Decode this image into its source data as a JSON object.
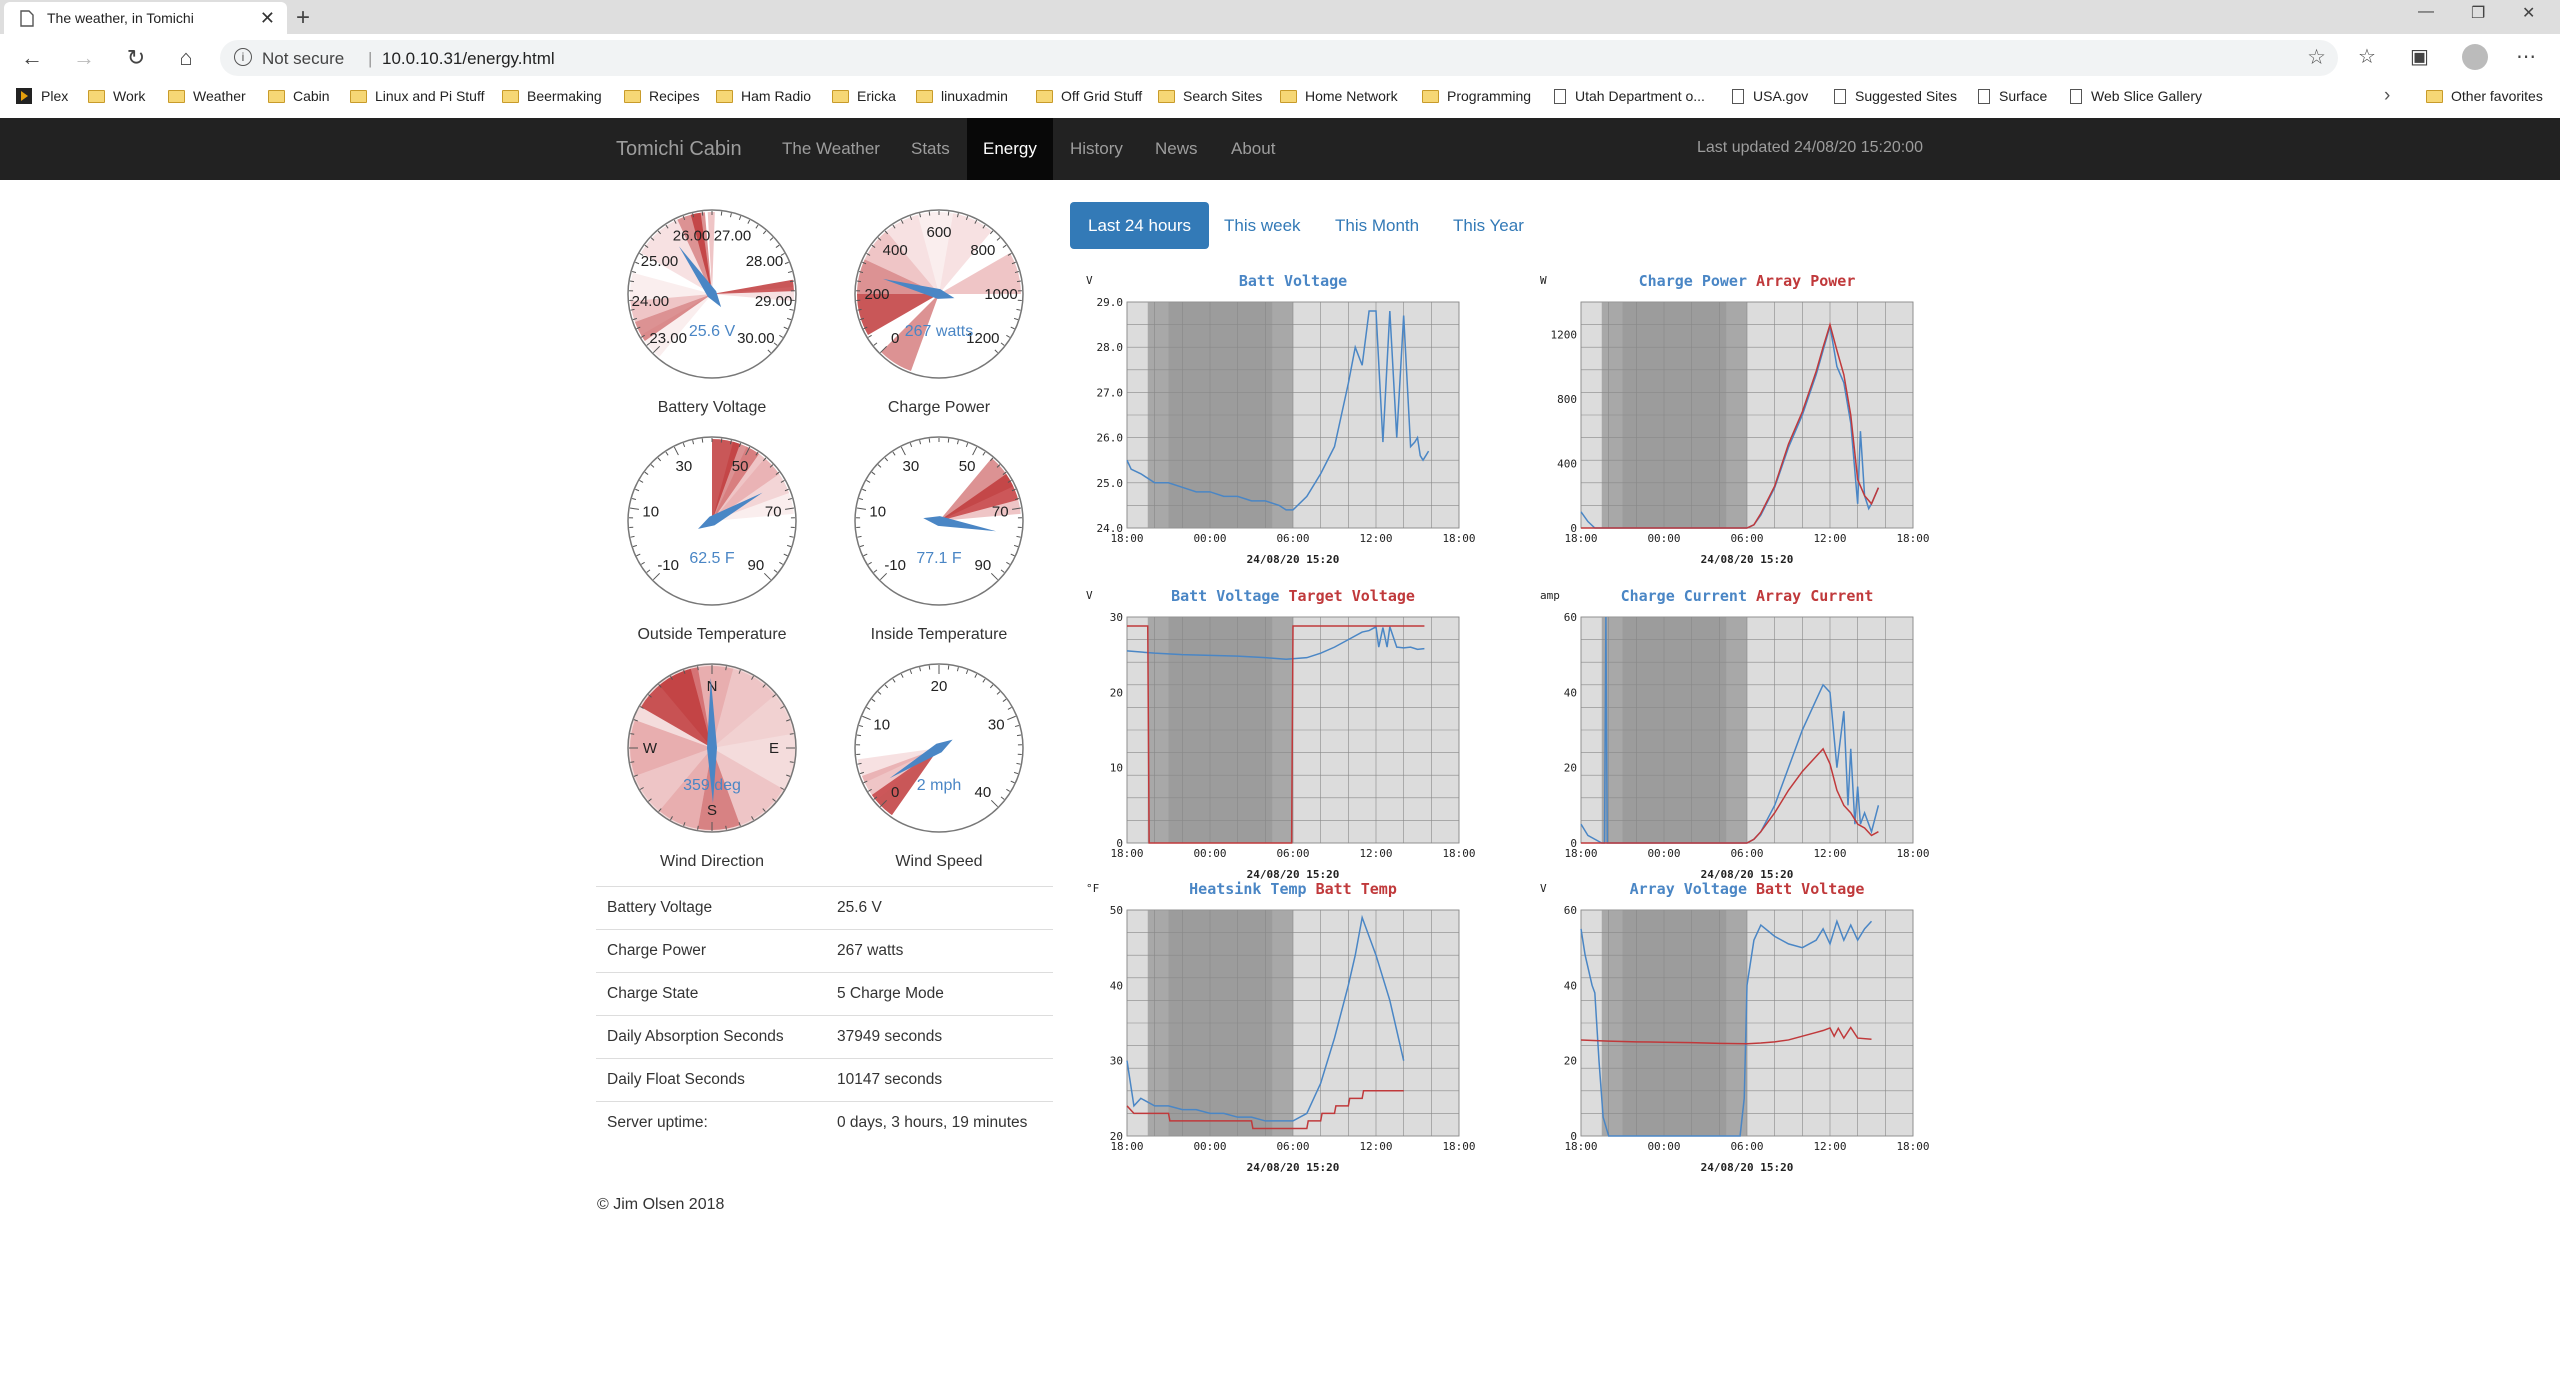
{
  "browser": {
    "tab_title": "The weather, in Tomichi",
    "new_tab": "+",
    "close_tab": "✕",
    "security": "Not secure",
    "url": "10.0.10.31/energy.html",
    "bookmarks": [
      "Plex",
      "Work",
      "Weather",
      "Cabin",
      "Linux and Pi Stuff",
      "Beermaking",
      "Recipes",
      "Ham Radio",
      "Ericka",
      "linuxadmin",
      "Off Grid Stuff",
      "Search Sites",
      "Home Network",
      "Programming",
      "Utah Department o...",
      "USA.gov",
      "Suggested Sites",
      "Surface",
      "Web Slice Gallery"
    ],
    "other_favorites": "Other favorites"
  },
  "nav": {
    "brand": "Tomichi Cabin",
    "links": [
      "The Weather",
      "Stats",
      "Energy",
      "History",
      "News",
      "About"
    ],
    "active": "Energy",
    "last_updated": "Last updated 24/08/20 15:20:00"
  },
  "gauges": [
    {
      "label": "Battery Voltage",
      "value_text": "25.6 V",
      "value": 25.6,
      "min": 23,
      "max": 30,
      "ticks": [
        "23.00",
        "24.00",
        "25.00",
        "26.00",
        "27.00",
        "28.00",
        "29.00",
        "30.00"
      ]
    },
    {
      "label": "Charge Power",
      "value_text": "267 watts",
      "value": 267,
      "min": 0,
      "max": 1200,
      "ticks": [
        "0",
        "200",
        "400",
        "600",
        "800",
        "1000",
        "1200"
      ]
    },
    {
      "label": "Outside Temperature",
      "value_text": "62.5 F",
      "value": 62.5,
      "min": -10,
      "max": 90,
      "ticks": [
        "-10",
        "10",
        "30",
        "50",
        "70",
        "90"
      ]
    },
    {
      "label": "Inside Temperature",
      "value_text": "77.1 F",
      "value": 77.1,
      "min": -10,
      "max": 90,
      "ticks": [
        "-10",
        "10",
        "30",
        "50",
        "70",
        "90"
      ]
    },
    {
      "label": "Wind Direction",
      "value_text": "359 deg",
      "value": 359,
      "ticks": [
        "N",
        "E",
        "S",
        "W"
      ]
    },
    {
      "label": "Wind Speed",
      "value_text": "2 mph",
      "value": 2,
      "min": 0,
      "max": 40,
      "ticks": [
        "0",
        "10",
        "20",
        "30",
        "40"
      ]
    }
  ],
  "stats": [
    {
      "k": "Battery Voltage",
      "v": "25.6 V"
    },
    {
      "k": "Charge Power",
      "v": "267 watts"
    },
    {
      "k": "Charge State",
      "v": "5 Charge Mode"
    },
    {
      "k": "Daily Absorption Seconds",
      "v": "37949 seconds"
    },
    {
      "k": "Daily Float Seconds",
      "v": "10147 seconds"
    },
    {
      "k": "Server uptime:",
      "v": "0 days, 3 hours, 19 minutes"
    }
  ],
  "copyright": "© Jim Olsen 2018",
  "periods": [
    "Last 24 hours",
    "This week",
    "This Month",
    "This Year"
  ],
  "active_period": "Last 24 hours",
  "colors": {
    "blue": "#4a86c5",
    "red": "#c0393b",
    "nav": "#222222",
    "pill": "#337ab7"
  },
  "chart_data": [
    {
      "type": "line",
      "unit": "V",
      "titles": [
        "Batt Voltage"
      ],
      "ylim": [
        24,
        29
      ],
      "yticks": [
        "24.0",
        "25.0",
        "26.0",
        "27.0",
        "28.0",
        "29.0"
      ],
      "xticks": [
        "18:00",
        "00:00",
        "06:00",
        "12:00",
        "18:00"
      ],
      "date": "24/08/20 15:20",
      "series": [
        {
          "name": "Batt Voltage",
          "x": [
            0,
            0.3,
            1,
            2,
            3,
            4,
            5,
            6,
            7,
            8,
            9,
            10,
            11,
            11.5,
            12,
            13,
            14,
            15,
            15.5,
            16,
            16.5,
            17,
            17.5,
            18,
            18.5,
            19,
            19.5,
            20,
            20.5,
            20.8,
            21,
            21.2,
            21.4,
            21.6,
            21.8
          ],
          "y": [
            25.5,
            25.3,
            25.2,
            25.0,
            25.0,
            24.9,
            24.8,
            24.8,
            24.7,
            24.7,
            24.6,
            24.6,
            24.5,
            24.4,
            24.4,
            24.7,
            25.2,
            25.8,
            26.5,
            27.2,
            28.0,
            27.6,
            28.8,
            28.8,
            25.9,
            28.8,
            26.0,
            28.7,
            25.8,
            25.9,
            26.0,
            25.6,
            25.5,
            25.6,
            25.7
          ]
        }
      ]
    },
    {
      "type": "line",
      "unit": "W",
      "titles": [
        "Charge Power",
        "Array Power"
      ],
      "ylim": [
        0,
        1400
      ],
      "yticks": [
        "0",
        "400",
        "800",
        "1200"
      ],
      "xticks": [
        "18:00",
        "00:00",
        "06:00",
        "12:00",
        "18:00"
      ],
      "date": "24/08/20 15:20",
      "series": [
        {
          "name": "Charge Power",
          "x": [
            0,
            0.5,
            1,
            1.5,
            2,
            12,
            12.5,
            13,
            14,
            15,
            16,
            17,
            17.5,
            18,
            18.5,
            19,
            19.5,
            20,
            20.2,
            20.5,
            20.8,
            21,
            21.5
          ],
          "y": [
            100,
            40,
            0,
            0,
            0,
            0,
            20,
            80,
            250,
            500,
            700,
            950,
            1100,
            1250,
            1000,
            900,
            650,
            150,
            600,
            200,
            120,
            150,
            250
          ]
        },
        {
          "name": "Array Power",
          "x": [
            0,
            1,
            2,
            12,
            12.5,
            13,
            14,
            15,
            16,
            17,
            17.5,
            18,
            18.5,
            19,
            19.5,
            20,
            20.5,
            21,
            21.5
          ],
          "y": [
            0,
            0,
            0,
            0,
            20,
            90,
            260,
            520,
            720,
            970,
            1120,
            1260,
            1100,
            950,
            700,
            300,
            200,
            150,
            250
          ]
        }
      ]
    },
    {
      "type": "line",
      "unit": "V",
      "titles": [
        "Batt Voltage",
        "Target Voltage"
      ],
      "ylim": [
        0,
        30
      ],
      "yticks": [
        "0",
        "10",
        "20",
        "30"
      ],
      "xticks": [
        "18:00",
        "00:00",
        "06:00",
        "12:00",
        "18:00"
      ],
      "date": "24/08/20 15:20",
      "series": [
        {
          "name": "Batt Voltage",
          "x": [
            0,
            2,
            4,
            6,
            8,
            10,
            11.5,
            13,
            14,
            15,
            16,
            17,
            17.5,
            18,
            18.2,
            18.5,
            18.8,
            19,
            19.5,
            20,
            20.5,
            21,
            21.5
          ],
          "y": [
            25.5,
            25.2,
            25.0,
            24.9,
            24.8,
            24.6,
            24.4,
            24.6,
            25.2,
            26.0,
            27.0,
            28.0,
            28.2,
            28.7,
            26.0,
            28.6,
            26.0,
            28.7,
            26.0,
            25.9,
            26.0,
            25.7,
            25.8
          ]
        },
        {
          "name": "Target Voltage",
          "x": [
            0,
            1.5,
            1.6,
            11.9,
            12,
            15,
            18,
            21.5
          ],
          "y": [
            28.8,
            28.8,
            0,
            0,
            28.8,
            28.8,
            28.8,
            28.8
          ]
        }
      ]
    },
    {
      "type": "line",
      "unit": "amp",
      "titles": [
        "Charge Current",
        "Array Current"
      ],
      "ylim": [
        0,
        60
      ],
      "yticks": [
        "0",
        "20",
        "40",
        "60"
      ],
      "xticks": [
        "18:00",
        "00:00",
        "06:00",
        "12:00",
        "18:00"
      ],
      "date": "24/08/20 15:20",
      "series": [
        {
          "name": "Charge Current",
          "x": [
            0,
            0.5,
            1,
            1.5,
            1.7,
            1.8,
            1.9,
            2,
            3,
            12,
            12.5,
            13,
            14,
            15,
            16,
            17,
            17.5,
            18,
            18.5,
            19,
            19.3,
            19.5,
            19.8,
            20,
            20.2,
            20.5,
            21,
            21.5
          ],
          "y": [
            5,
            2,
            1,
            0,
            0,
            62,
            0,
            0,
            0,
            0,
            1,
            3,
            10,
            20,
            30,
            38,
            42,
            40,
            20,
            35,
            10,
            25,
            5,
            15,
            5,
            8,
            3,
            10
          ]
        },
        {
          "name": "Array Current",
          "x": [
            0,
            1,
            2,
            12,
            12.5,
            13,
            14,
            15,
            16,
            17,
            17.5,
            18,
            18.5,
            19,
            19.5,
            20,
            20.5,
            21,
            21.5
          ],
          "y": [
            0,
            0,
            0,
            0,
            1,
            3,
            8,
            14,
            19,
            23,
            25,
            21,
            14,
            10,
            8,
            5,
            4,
            2,
            3
          ]
        }
      ]
    },
    {
      "type": "line",
      "unit": "°F",
      "titles": [
        "Heatsink Temp",
        "Batt Temp"
      ],
      "ylim": [
        20,
        50
      ],
      "yticks": [
        "20",
        "30",
        "40",
        "50"
      ],
      "xticks": [
        "18:00",
        "00:00",
        "06:00",
        "12:00",
        "18:00"
      ],
      "date": "24/08/20 15:20",
      "series": [
        {
          "name": "Heatsink Temp",
          "x": [
            0,
            0.5,
            1,
            2,
            3,
            4,
            5,
            6,
            7,
            8,
            9,
            10,
            11,
            12,
            13,
            14,
            15,
            16,
            16.5,
            17,
            18,
            19,
            20
          ],
          "y": [
            30,
            24,
            25,
            24,
            24,
            23.5,
            23.5,
            23,
            23,
            22.5,
            22.5,
            22,
            22,
            22,
            23,
            27,
            33,
            40,
            44,
            49,
            44,
            38,
            30
          ]
        },
        {
          "name": "Batt Temp",
          "x": [
            0,
            0.5,
            1,
            3,
            3.1,
            5,
            5.1,
            9,
            9.1,
            11,
            11.1,
            13,
            13.1,
            14,
            14.1,
            15,
            15.1,
            16,
            16.1,
            17,
            17.1,
            18,
            18.1,
            20
          ],
          "y": [
            24,
            23,
            23,
            23,
            22,
            22,
            22,
            22,
            21,
            21,
            21,
            21,
            22,
            22,
            23,
            23,
            24,
            24,
            25,
            25,
            26,
            26,
            26,
            26
          ]
        }
      ]
    },
    {
      "type": "line",
      "unit": "V",
      "titles": [
        "Array Voltage",
        "Batt Voltage"
      ],
      "ylim": [
        0,
        60
      ],
      "yticks": [
        "0",
        "20",
        "40",
        "60"
      ],
      "xticks": [
        "18:00",
        "00:00",
        "06:00",
        "12:00",
        "18:00"
      ],
      "date": "24/08/20 15:20",
      "series": [
        {
          "name": "Array Voltage",
          "x": [
            0,
            0.3,
            0.8,
            1,
            1.3,
            1.6,
            2,
            11.5,
            11.8,
            12,
            12.5,
            13,
            14,
            15,
            16,
            17,
            17.5,
            18,
            18.5,
            19,
            19.5,
            20,
            20.5,
            21
          ],
          "y": [
            55,
            48,
            40,
            38,
            20,
            5,
            0,
            0,
            10,
            40,
            52,
            56,
            53,
            51,
            50,
            52,
            55,
            51,
            57,
            52,
            56,
            52,
            55,
            57
          ]
        },
        {
          "name": "Batt Voltage",
          "x": [
            0,
            2,
            4,
            6,
            8,
            10,
            12,
            13,
            14,
            15,
            16,
            17,
            17.5,
            18,
            18.3,
            18.6,
            19,
            19.5,
            20,
            21
          ],
          "y": [
            25.5,
            25.2,
            25,
            24.9,
            24.8,
            24.6,
            24.5,
            24.7,
            25,
            25.5,
            26.5,
            27.5,
            28,
            28.7,
            26.5,
            28.6,
            26,
            28.8,
            26,
            25.7
          ]
        }
      ]
    }
  ]
}
